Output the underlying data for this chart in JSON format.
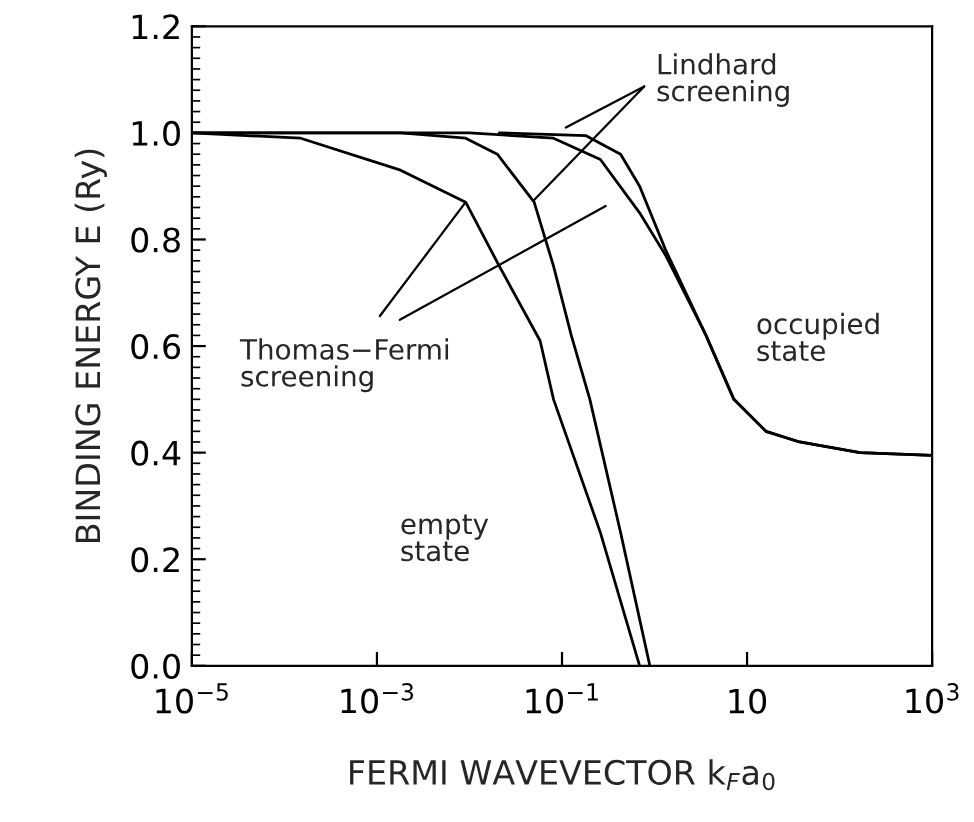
{
  "chart_data": {
    "type": "line",
    "xlabel": "FERMI WAVEVECTOR k$_{F}$a$_{0}$",
    "ylabel": "BINDING ENERGY E (Ry)",
    "log": "x",
    "xlim": [
      1e-05,
      1000
    ],
    "ylim": [
      0,
      1.2
    ],
    "xticks": [
      {
        "value": 1e-05,
        "label": "10$^{−5}$"
      },
      {
        "value": 0.001,
        "label": "10$^{−3}$"
      },
      {
        "value": 0.1,
        "label": "10$^{−1}$"
      },
      10,
      {
        "value": 1000,
        "label": "10$^{3}$"
      }
    ],
    "yticks": [
      {
        "value": 0,
        "label": "0.0"
      },
      0.2,
      0.4,
      0.6,
      0.8,
      {
        "value": 1,
        "label": "1.0"
      },
      1.2
    ],
    "grid": false,
    "marker": "none",
    "line_style": "solid",
    "series": [
      {
        "color": "#000000",
        "x": [
          1e-05,
          0.00015,
          0.0018,
          0.0091,
          0.021,
          0.058,
          0.081,
          0.26,
          0.69
        ],
        "values": [
          1.0,
          0.99,
          0.93,
          0.87,
          0.75,
          0.61,
          0.5,
          0.25,
          0
        ]
      },
      {
        "color": "#000000",
        "x": [
          1e-05,
          0.0018,
          0.0091,
          0.02,
          0.05,
          0.081,
          0.126,
          0.2,
          0.43,
          0.89
        ],
        "values": [
          1.0,
          1.0,
          0.99,
          0.96,
          0.87,
          0.75,
          0.62,
          0.5,
          0.25,
          0
        ]
      },
      {
        "color": "#000000",
        "x": [
          1e-05,
          0.01,
          0.081,
          0.26,
          0.69,
          1.32,
          3.6,
          7.2,
          16,
          37,
          166,
          1000
        ],
        "values": [
          1.0,
          1.0,
          0.99,
          0.95,
          0.85,
          0.77,
          0.62,
          0.5,
          0.44,
          0.42,
          0.4,
          0.395
        ]
      },
      {
        "color": "#000000",
        "x": [
          0.021,
          0.18,
          0.43,
          0.69,
          1.32,
          3.6,
          7.2,
          16,
          37,
          166,
          1000
        ],
        "values": [
          1.0,
          0.995,
          0.96,
          0.9,
          0.78,
          0.62,
          0.5,
          0.44,
          0.42,
          0.4,
          0.395
        ]
      }
    ],
    "annotations": [
      {
        "text": "Lindhard\nscreening",
        "x": 0.11,
        "y": 1.01
      },
      {
        "text": "Thomas−Fermi\nscreening",
        "x": 0.0091,
        "y": 0.87
      },
      "occupied\nstate",
      "empty\nstate"
    ]
  }
}
